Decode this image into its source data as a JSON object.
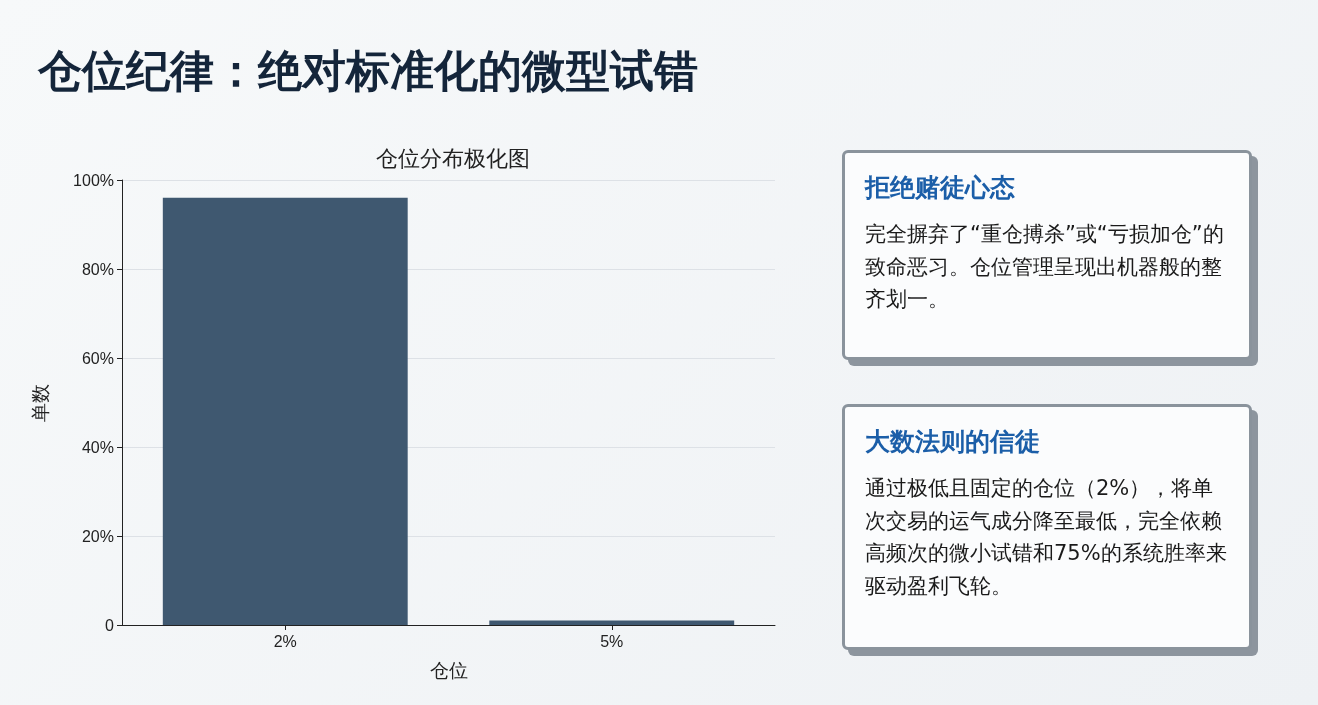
{
  "chart_data": {
    "type": "bar",
    "title": "仓位纪律：绝对标准化的微型试错",
    "subtitle": "仓位分布极化图",
    "xlabel": "仓位",
    "ylabel": "单数",
    "categories": [
      "2%",
      "5%"
    ],
    "values": [
      96,
      1
    ],
    "color": "#3f5870",
    "ylim": [
      0,
      100
    ],
    "yticks": [
      0,
      {
        "value": 20,
        "label": "20%"
      },
      {
        "value": 40,
        "label": "40%"
      },
      {
        "value": 60,
        "label": "60%"
      },
      {
        "value": 80,
        "label": "80%"
      },
      {
        "value": 100,
        "label": "100%"
      }
    ],
    "grid": "y",
    "annotations": [
      "拒绝赌徒心态",
      "完全摒弃了“重仓搏杀”或“亏损加仓”的致命恶习。仓位管理呈现出机器般的整齐划一。",
      "大数法则的信徒",
      "通过极低且固定的仓位（2%），将单次交易的运气成分降至最低，完全依赖高频次的微小试错和75%的系统胜率来驱动盈利飞轮。"
    ]
  }
}
